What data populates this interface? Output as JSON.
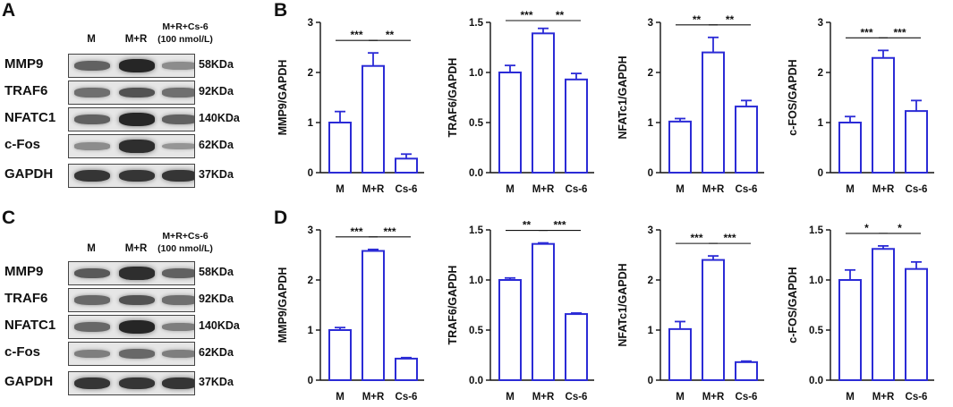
{
  "figure": {
    "panel_letters": [
      "A",
      "B",
      "C",
      "D"
    ],
    "blots": [
      {
        "id": "A",
        "lane_labels": [
          "M",
          "M+R",
          "M+R+Cs-6 (100 nmol/L)"
        ],
        "lane_label_top": "M+R+Cs-6",
        "lane_label_bottom": "(100 nmol/L)",
        "rows": [
          {
            "protein": "MMP9",
            "kda": "58KDa",
            "intensity": [
              0.55,
              0.95,
              0.25
            ]
          },
          {
            "protein": "TRAF6",
            "kda": "92KDa",
            "intensity": [
              0.45,
              0.65,
              0.45
            ]
          },
          {
            "protein": "NFATC1",
            "kda": "140KDa",
            "intensity": [
              0.55,
              0.95,
              0.55
            ]
          },
          {
            "protein": "c-Fos",
            "kda": "62KDa",
            "intensity": [
              0.25,
              0.9,
              0.2
            ]
          },
          {
            "protein": "GAPDH",
            "kda": "37KDa",
            "intensity": [
              0.85,
              0.85,
              0.85
            ]
          }
        ]
      },
      {
        "id": "C",
        "lane_labels": [
          "M",
          "M+R",
          "M+R+Cs-6 (100 nmol/L)"
        ],
        "lane_label_top": "M+R+Cs-6",
        "lane_label_bottom": "(100 nmol/L)",
        "rows": [
          {
            "protein": "MMP9",
            "kda": "58KDa",
            "intensity": [
              0.6,
              0.9,
              0.55
            ]
          },
          {
            "protein": "TRAF6",
            "kda": "92KDa",
            "intensity": [
              0.5,
              0.65,
              0.45
            ]
          },
          {
            "protein": "NFATC1",
            "kda": "140KDa",
            "intensity": [
              0.5,
              0.95,
              0.35
            ]
          },
          {
            "protein": "c-Fos",
            "kda": "62KDa",
            "intensity": [
              0.35,
              0.5,
              0.35
            ]
          },
          {
            "protein": "GAPDH",
            "kda": "37KDa",
            "intensity": [
              0.85,
              0.85,
              0.85
            ]
          }
        ]
      }
    ]
  },
  "chart_data": [
    {
      "panel": "B",
      "type": "bar",
      "ylabel": "MMP9/GAPDH",
      "categories": [
        "M",
        "M+R",
        "Cs-6"
      ],
      "values": [
        1.0,
        2.13,
        0.28
      ],
      "errors": [
        0.22,
        0.26,
        0.09
      ],
      "ylim": [
        0,
        3
      ],
      "yticks": [
        "0",
        "1",
        "2",
        "3"
      ],
      "significance": [
        {
          "from": 0,
          "to": 1,
          "label": "***"
        },
        {
          "from": 1,
          "to": 2,
          "label": "**"
        }
      ]
    },
    {
      "panel": "B",
      "type": "bar",
      "ylabel": "TRAF6/GAPDH",
      "categories": [
        "M",
        "M+R",
        "Cs-6"
      ],
      "values": [
        1.0,
        1.39,
        0.93
      ],
      "errors": [
        0.07,
        0.05,
        0.06
      ],
      "ylim": [
        0,
        1.5
      ],
      "yticks": [
        "0.0",
        "0.5",
        "1.0",
        "1.5"
      ],
      "significance": [
        {
          "from": 0,
          "to": 1,
          "label": "***"
        },
        {
          "from": 1,
          "to": 2,
          "label": "**"
        }
      ]
    },
    {
      "panel": "B",
      "type": "bar",
      "ylabel": "NFATc1/GAPDH",
      "categories": [
        "M",
        "M+R",
        "Cs-6"
      ],
      "values": [
        1.02,
        2.4,
        1.32
      ],
      "errors": [
        0.06,
        0.3,
        0.12
      ],
      "ylim": [
        0,
        3
      ],
      "yticks": [
        "0",
        "1",
        "2",
        "3"
      ],
      "significance": [
        {
          "from": 0,
          "to": 1,
          "label": "**"
        },
        {
          "from": 1,
          "to": 2,
          "label": "**"
        }
      ]
    },
    {
      "panel": "B",
      "type": "bar",
      "ylabel": "c-FOS/GAPDH",
      "categories": [
        "M",
        "M+R",
        "Cs-6"
      ],
      "values": [
        1.0,
        2.29,
        1.23
      ],
      "errors": [
        0.12,
        0.15,
        0.21
      ],
      "ylim": [
        0,
        3
      ],
      "yticks": [
        "0",
        "1",
        "2",
        "3"
      ],
      "significance": [
        {
          "from": 0,
          "to": 1,
          "label": "***"
        },
        {
          "from": 1,
          "to": 2,
          "label": "***"
        }
      ]
    },
    {
      "panel": "D",
      "type": "bar",
      "ylabel": "MMP9/GAPDH",
      "categories": [
        "M",
        "M+R",
        "Cs-6"
      ],
      "values": [
        1.0,
        2.58,
        0.43
      ],
      "errors": [
        0.05,
        0.03,
        0.02
      ],
      "ylim": [
        0,
        3
      ],
      "yticks": [
        "0",
        "1",
        "2",
        "3"
      ],
      "significance": [
        {
          "from": 0,
          "to": 1,
          "label": "***"
        },
        {
          "from": 1,
          "to": 2,
          "label": "***"
        }
      ]
    },
    {
      "panel": "D",
      "type": "bar",
      "ylabel": "TRAF6/GAPDH",
      "categories": [
        "M",
        "M+R",
        "Cs-6"
      ],
      "values": [
        1.0,
        1.36,
        0.66
      ],
      "errors": [
        0.02,
        0.01,
        0.01
      ],
      "ylim": [
        0,
        1.5
      ],
      "yticks": [
        "0.0",
        "0.5",
        "1.0",
        "1.5"
      ],
      "significance": [
        {
          "from": 0,
          "to": 1,
          "label": "**"
        },
        {
          "from": 1,
          "to": 2,
          "label": "***"
        }
      ]
    },
    {
      "panel": "D",
      "type": "bar",
      "ylabel": "NFATc1/GAPDH",
      "categories": [
        "M",
        "M+R",
        "Cs-6"
      ],
      "values": [
        1.02,
        2.4,
        0.36
      ],
      "errors": [
        0.15,
        0.08,
        0.02
      ],
      "ylim": [
        0,
        3
      ],
      "yticks": [
        "0",
        "1",
        "2",
        "3"
      ],
      "significance": [
        {
          "from": 0,
          "to": 1,
          "label": "***"
        },
        {
          "from": 1,
          "to": 2,
          "label": "***"
        }
      ]
    },
    {
      "panel": "D",
      "type": "bar",
      "ylabel": "c-FOS/GAPDH",
      "categories": [
        "M",
        "M+R",
        "Cs-6"
      ],
      "values": [
        1.0,
        1.31,
        1.11
      ],
      "errors": [
        0.1,
        0.03,
        0.07
      ],
      "ylim": [
        0,
        1.5
      ],
      "yticks": [
        "0.0",
        "0.5",
        "1.0",
        "1.5"
      ],
      "significance": [
        {
          "from": 0,
          "to": 1,
          "label": "*"
        },
        {
          "from": 1,
          "to": 2,
          "label": "*"
        }
      ]
    }
  ],
  "colors": {
    "bar_stroke": "#2b2bd6",
    "axis": "#111111",
    "band": "#1a1a1a"
  }
}
